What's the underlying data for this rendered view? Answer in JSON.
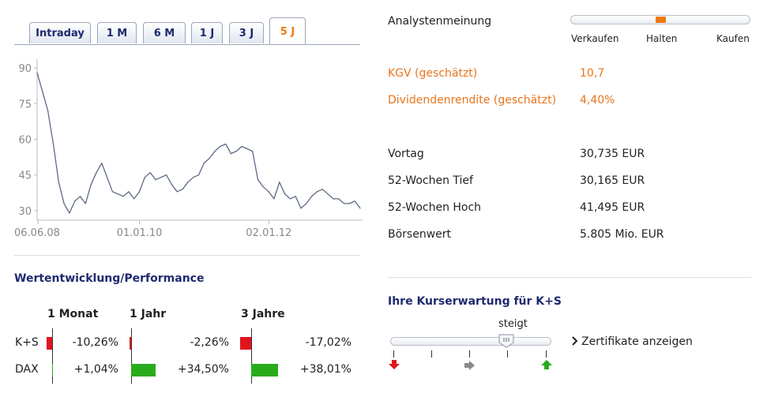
{
  "tabs": [
    {
      "label": "Intraday",
      "active": false
    },
    {
      "label": "1 M",
      "active": false
    },
    {
      "label": "6 M",
      "active": false
    },
    {
      "label": "1 J",
      "active": false
    },
    {
      "label": "3 J",
      "active": false
    },
    {
      "label": "5 J",
      "active": true
    }
  ],
  "chart_data": {
    "type": "line",
    "ylim": [
      26,
      92
    ],
    "yticks": [
      30,
      45,
      60,
      75,
      90
    ],
    "xlabels": [
      "06.06.08",
      "01.01.10",
      "02.01.12"
    ],
    "x": [
      "2008-06",
      "2008-07",
      "2008-08",
      "2008-09",
      "2008-10",
      "2008-11",
      "2008-12",
      "2009-01",
      "2009-02",
      "2009-03",
      "2009-04",
      "2009-05",
      "2009-06",
      "2009-07",
      "2009-08",
      "2009-09",
      "2009-10",
      "2009-11",
      "2009-12",
      "2010-01",
      "2010-02",
      "2010-03",
      "2010-04",
      "2010-05",
      "2010-06",
      "2010-07",
      "2010-08",
      "2010-09",
      "2010-10",
      "2010-11",
      "2010-12",
      "2011-01",
      "2011-02",
      "2011-03",
      "2011-04",
      "2011-05",
      "2011-06",
      "2011-07",
      "2011-08",
      "2011-09",
      "2011-10",
      "2011-11",
      "2011-12",
      "2012-01",
      "2012-02",
      "2012-03",
      "2012-04",
      "2012-05",
      "2012-06",
      "2012-07",
      "2012-08",
      "2012-09",
      "2012-10",
      "2012-11",
      "2012-12",
      "2013-01",
      "2013-02",
      "2013-03",
      "2013-04",
      "2013-05",
      "2013-06"
    ],
    "y": [
      88,
      80,
      72,
      58,
      42,
      33,
      29,
      34,
      36,
      33,
      41,
      46,
      50,
      44,
      38,
      37,
      36,
      38,
      35,
      38,
      44,
      46,
      43,
      44,
      45,
      41,
      38,
      39,
      42,
      44,
      45,
      50,
      52,
      55,
      57,
      58,
      54,
      55,
      57,
      56,
      55,
      43,
      40,
      38,
      35,
      42,
      37,
      35,
      36,
      31,
      33,
      36,
      38,
      39,
      37,
      35,
      35,
      33,
      33,
      34,
      31
    ],
    "series": [
      {
        "values_ref": "y"
      }
    ]
  },
  "performance": {
    "title": "Wertentwicklung/Performance",
    "periods": [
      "1 Monat",
      "1 Jahr",
      "3 Jahre"
    ],
    "rows": [
      {
        "name": "K+S",
        "values": [
          "-10,26%",
          "-2,26%",
          "-17,02%"
        ],
        "numeric": [
          -10.26,
          -2.26,
          -17.02
        ]
      },
      {
        "name": "DAX",
        "values": [
          "+1,04%",
          "+34,50%",
          "+38,01%"
        ],
        "numeric": [
          1.04,
          34.5,
          38.01
        ]
      }
    ],
    "colors": {
      "negative": "#e0141e",
      "positive": "#2aab1c"
    }
  },
  "analyst": {
    "label": "Analystenmeinung",
    "left": "Verkaufen",
    "mid": "Halten",
    "right": "Kaufen",
    "position": 0.5,
    "marker_color": "#f07a10"
  },
  "estimates": [
    {
      "label": "KGV (geschätzt)",
      "value": "10,7"
    },
    {
      "label": "Dividendenrendite (geschätzt)",
      "value": "4,40%"
    }
  ],
  "facts": [
    {
      "label": "Vortag",
      "value": "30,735 EUR"
    },
    {
      "label": "52-Wochen Tief",
      "value": "30,165 EUR"
    },
    {
      "label": "52-Wochen Hoch",
      "value": "41,495 EUR"
    },
    {
      "label": "Börsenwert",
      "value": "5.805 Mio. EUR"
    }
  ],
  "expectation": {
    "title": "Ihre Kurserwartung für K+S",
    "handle_label": "steigt",
    "position": 0.72,
    "link": "Zertifikate anzeigen",
    "link_icon": "chevron-right-icon",
    "arrows": {
      "down": "#e0141e",
      "neutral": "#888888",
      "up": "#2aab1c"
    }
  },
  "accent": "#f07a10",
  "brand": "#1e2a6e"
}
